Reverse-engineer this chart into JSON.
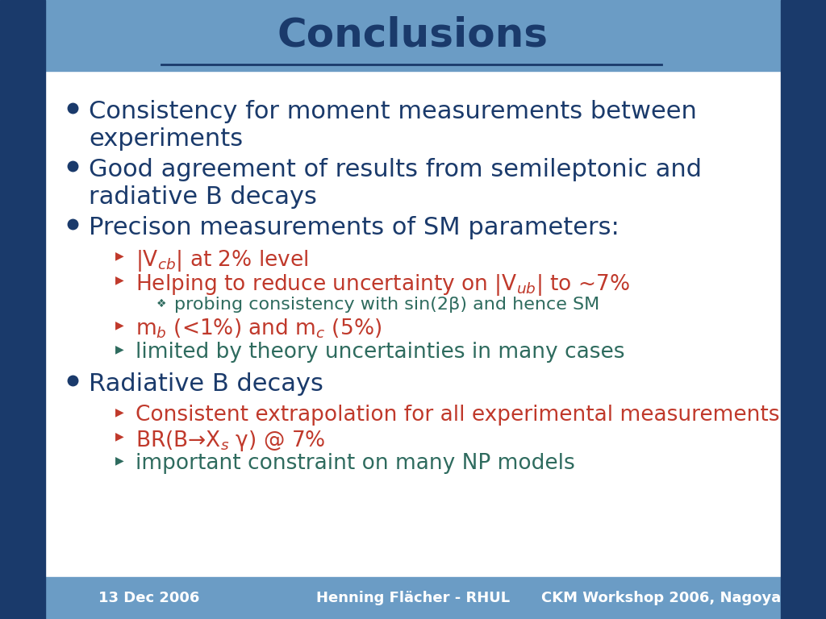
{
  "title": "Conclusions",
  "title_color": "#1a3a6b",
  "title_bg_color": "#6b9cc5",
  "sidebar_color": "#1a3a6b",
  "footer_bg_color": "#6b9cc5",
  "footer_texts": [
    "13 Dec 2006",
    "Henning Flächer - RHUL",
    "CKM Workshop 2006, Nagoya"
  ],
  "footer_color": "#ffffff",
  "bg_color": "#ffffff",
  "dark_blue": "#1a3a6b",
  "red": "#c0392b",
  "teal": "#2e6b5e",
  "bullet_items": [
    {
      "text": "Consistency for moment measurements between\nexperiments",
      "color": "#1a3a6b",
      "level": 0
    },
    {
      "text": "Good agreement of results from semileptonic and\nradiative B decays",
      "color": "#1a3a6b",
      "level": 0
    },
    {
      "text": "Precison measurements of SM parameters:",
      "color": "#1a3a6b",
      "level": 0
    },
    {
      "text": "|V$_{cb}$| at 2% level",
      "color": "#c0392b",
      "level": 1
    },
    {
      "text": "Helping to reduce uncertainty on |V$_{ub}$| to ~7%",
      "color": "#c0392b",
      "level": 1
    },
    {
      "text": "probing consistency with sin(2β) and hence SM",
      "color": "#2e6b5e",
      "level": 2
    },
    {
      "text": "m$_b$ (<1%) and m$_c$ (5%)",
      "color": "#c0392b",
      "level": 1
    },
    {
      "text": "limited by theory uncertainties in many cases",
      "color": "#2e6b5e",
      "level": 1
    },
    {
      "text": "Radiative B decays",
      "color": "#1a3a6b",
      "level": 0
    },
    {
      "text": "Consistent extrapolation for all experimental measurements",
      "color": "#c0392b",
      "level": 1
    },
    {
      "text": "BR(B→X$_s$ γ) @ 7%",
      "color": "#c0392b",
      "level": 1
    },
    {
      "text": "important constraint on many NP models",
      "color": "#2e6b5e",
      "level": 1
    }
  ]
}
